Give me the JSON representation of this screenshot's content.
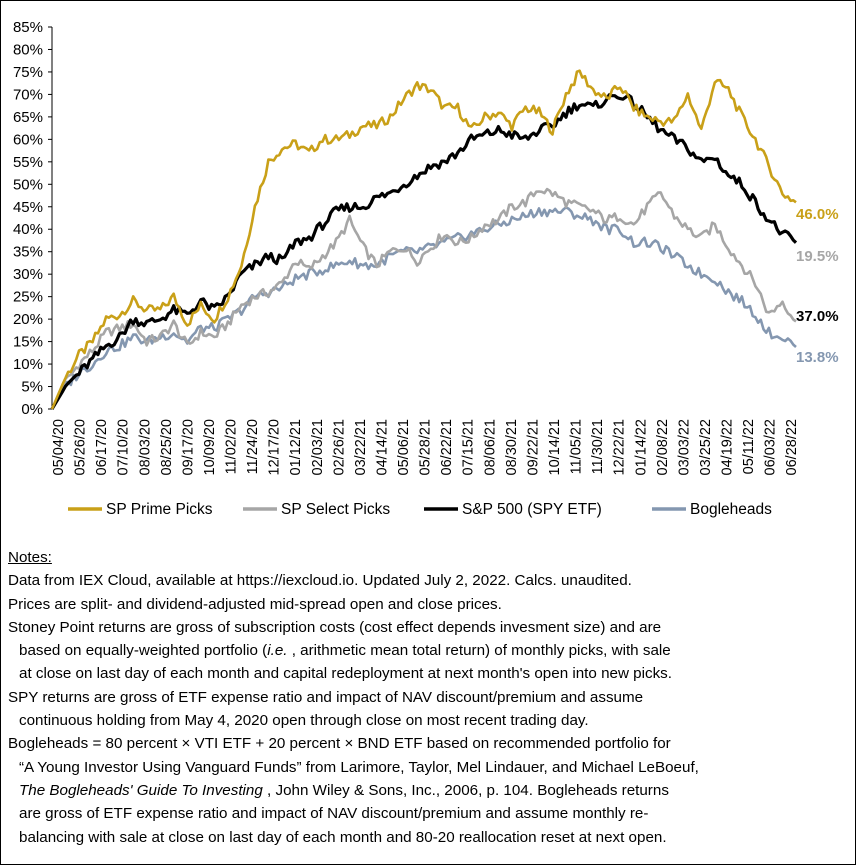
{
  "chart_data": {
    "type": "line",
    "title": "",
    "xlabel": "",
    "ylabel": "",
    "ylim": [
      0,
      85
    ],
    "y_ticks": [
      "0%",
      "5%",
      "10%",
      "15%",
      "20%",
      "25%",
      "30%",
      "35%",
      "40%",
      "45%",
      "50%",
      "55%",
      "60%",
      "65%",
      "70%",
      "75%",
      "80%",
      "85%"
    ],
    "x_ticks": [
      "05/04/20",
      "05/26/20",
      "06/17/20",
      "07/10/20",
      "08/03/20",
      "08/25/20",
      "09/17/20",
      "10/09/20",
      "11/02/20",
      "11/24/20",
      "12/17/20",
      "01/12/21",
      "02/03/21",
      "02/26/21",
      "03/22/21",
      "04/14/21",
      "05/06/21",
      "05/28/21",
      "06/22/21",
      "07/15/21",
      "08/06/21",
      "08/30/21",
      "09/22/21",
      "10/14/21",
      "11/05/21",
      "11/30/21",
      "12/22/21",
      "01/14/22",
      "02/08/22",
      "03/03/22",
      "03/25/22",
      "04/19/22",
      "05/11/22",
      "06/03/22",
      "06/28/22"
    ],
    "grid": false,
    "legend_position": "bottom",
    "series": [
      {
        "name": "SP Prime Picks",
        "color": "#C9A018",
        "end_label": "46.0%",
        "values": [
          0,
          7,
          12,
          15,
          20,
          21,
          24,
          22,
          22,
          25,
          19,
          23,
          20,
          25,
          32,
          45,
          55,
          58,
          59,
          57,
          60,
          60,
          61,
          63,
          63,
          65,
          69,
          72,
          71,
          67,
          67,
          62,
          65,
          66,
          63,
          67,
          66,
          62,
          70,
          75,
          71,
          69,
          72,
          67,
          65,
          64,
          64,
          70,
          62,
          73,
          71,
          65,
          60,
          54,
          48,
          46
        ]
      },
      {
        "name": "SP Select Picks",
        "color": "#A6A6A6",
        "end_label": "19.5%",
        "values": [
          0,
          6,
          10,
          13,
          17,
          18,
          19,
          15,
          16,
          19,
          14,
          17,
          16,
          19,
          23,
          25,
          26,
          28,
          33,
          31,
          34,
          37,
          42,
          36,
          32,
          35,
          36,
          33,
          36,
          39,
          37,
          38,
          41,
          42,
          45,
          46,
          49,
          48,
          46,
          45,
          44,
          42,
          43,
          41,
          45,
          48,
          43,
          40,
          38,
          41,
          36,
          32,
          28,
          21,
          24,
          19.5
        ]
      },
      {
        "name": "S&P 500 (SPY ETF)",
        "color": "#000000",
        "end_label": "37.0%",
        "values": [
          0,
          5,
          8,
          11,
          14,
          16,
          20,
          19,
          20,
          22,
          21,
          24,
          22,
          25,
          30,
          32,
          34,
          33,
          37,
          38,
          41,
          44,
          45,
          45,
          47,
          48,
          50,
          52,
          54,
          55,
          57,
          60,
          61,
          62,
          61,
          60,
          62,
          63,
          66,
          68,
          67,
          69,
          70,
          68,
          65,
          62,
          60,
          58,
          55,
          56,
          52,
          50,
          46,
          42,
          39,
          37
        ]
      },
      {
        "name": "Bogleheads",
        "color": "#8497B0",
        "end_label": "13.8%",
        "values": [
          0,
          5,
          8,
          10,
          13,
          14,
          16,
          15,
          16,
          17,
          15,
          18,
          18,
          20,
          22,
          25,
          26,
          27,
          29,
          30,
          31,
          32,
          33,
          32,
          32,
          34,
          35,
          35,
          36,
          37,
          38,
          39,
          40,
          41,
          42,
          43,
          44,
          44,
          44,
          43,
          42,
          40,
          40,
          37,
          37,
          36,
          34,
          32,
          30,
          29,
          26,
          24,
          21,
          17,
          16,
          13.8
        ]
      }
    ]
  },
  "notes": {
    "heading": "Notes:",
    "line1": "Data from IEX Cloud, available at https://iexcloud.io. Updated July 2, 2022. Calcs. unaudited.",
    "line2": "Prices are split- and dividend-adjusted mid-spread open and close prices.",
    "line3": "Stoney Point returns are gross of subscription costs (cost effect depends invesment size) and are",
    "line4_pre": "based on equally-weighted portfolio (",
    "line4_ie": "i.e.",
    "line4_post": " , arithmetic mean total return) of monthly picks, with sale",
    "line5": "at close on last day of each month and capital redeployment at next month's open into new picks.",
    "line6": "SPY returns are gross of ETF expense ratio and impact of NAV discount/premium and assume",
    "line7": "continuous holding from May 4, 2020 open through close on most recent trading day.",
    "line8": "Bogleheads = 80 percent × VTI ETF + 20 percent × BND ETF based on recommended portfolio for",
    "line9": "“A Young Investor Using Vanguard Funds” from Larimore, Taylor, Mel Lindauer, and Michael LeBoeuf,",
    "line10_book": "The Bogleheads' Guide To Investing",
    "line10_post": " , John Wiley & Sons, Inc., 2006, p. 104. Bogleheads returns",
    "line11": "are gross of ETF expense ratio and impact of NAV discount/premium and assume monthly re-",
    "line12": "balancing with sale at close on last day of each month and 80-20 reallocation reset at next open."
  }
}
